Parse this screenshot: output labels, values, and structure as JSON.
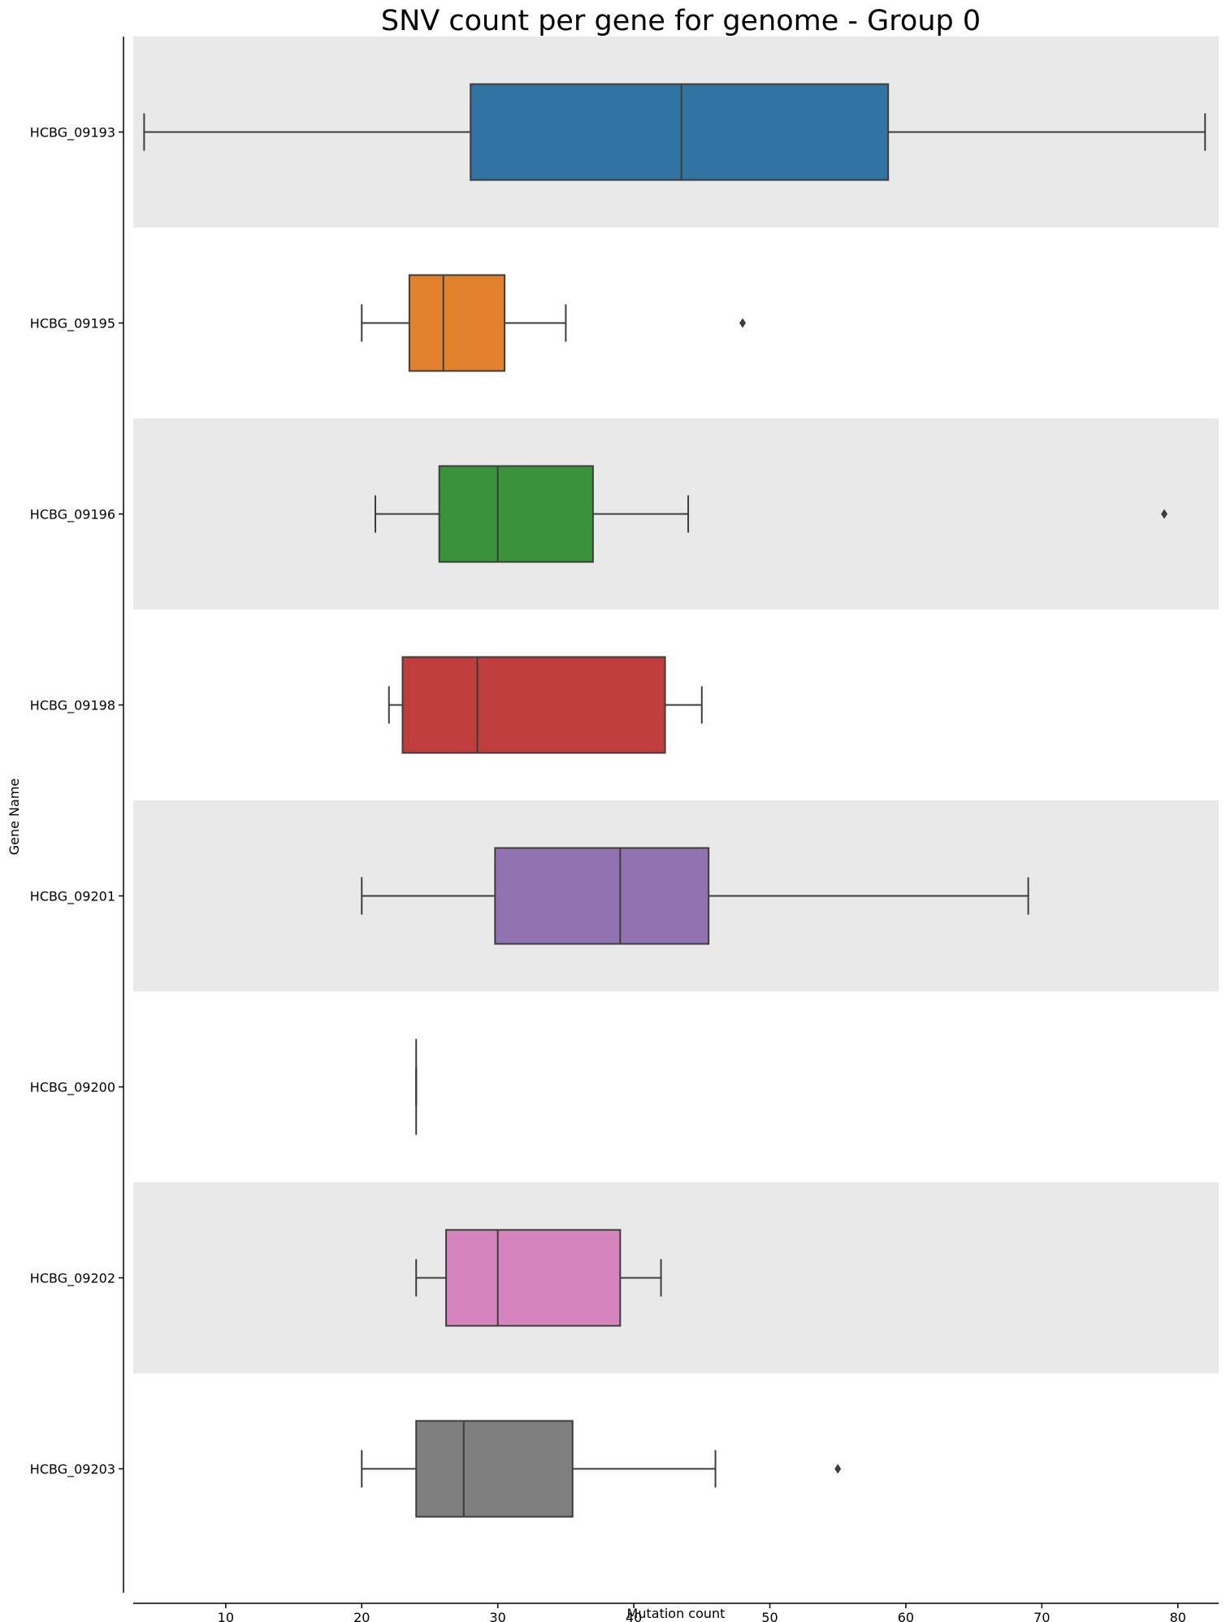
{
  "chart_data": {
    "type": "boxplot",
    "orientation": "horizontal",
    "title": "SNV count per gene for genome - Group 0",
    "xlabel": "Mutation count",
    "ylabel": "Gene Name",
    "xlim": [
      3.2,
      83.0
    ],
    "xticks": [
      10,
      20,
      30,
      40,
      50,
      60,
      70,
      80
    ],
    "band_shading": "alternating light gray rows",
    "categories": [
      "HCBG_09193",
      "HCBG_09195",
      "HCBG_09196",
      "HCBG_09198",
      "HCBG_09201",
      "HCBG_09200",
      "HCBG_09202",
      "HCBG_09203"
    ],
    "boxes": [
      {
        "label": "HCBG_09193",
        "whisker_low": 4,
        "q1": 28,
        "median": 43.5,
        "q3": 58.7,
        "whisker_high": 82,
        "outliers": [],
        "color": "#3274a1"
      },
      {
        "label": "HCBG_09195",
        "whisker_low": 20,
        "q1": 23.5,
        "median": 26,
        "q3": 30.5,
        "whisker_high": 35,
        "outliers": [
          48
        ],
        "color": "#e1812c"
      },
      {
        "label": "HCBG_09196",
        "whisker_low": 21,
        "q1": 25.7,
        "median": 30,
        "q3": 37,
        "whisker_high": 44,
        "outliers": [
          79
        ],
        "color": "#3a923a"
      },
      {
        "label": "HCBG_09198",
        "whisker_low": 22,
        "q1": 23,
        "median": 28.5,
        "q3": 42.3,
        "whisker_high": 45,
        "outliers": [],
        "color": "#c03d3e"
      },
      {
        "label": "HCBG_09201",
        "whisker_low": 20,
        "q1": 29.8,
        "median": 39,
        "q3": 45.5,
        "whisker_high": 69,
        "outliers": [],
        "color": "#9372b2"
      },
      {
        "label": "HCBG_09200",
        "whisker_low": 24,
        "q1": 24,
        "median": 24,
        "q3": 24,
        "whisker_high": 24,
        "outliers": [],
        "color": "#845b53"
      },
      {
        "label": "HCBG_09202",
        "whisker_low": 24,
        "q1": 26.2,
        "median": 30,
        "q3": 39,
        "whisker_high": 42,
        "outliers": [],
        "color": "#d684bd"
      },
      {
        "label": "HCBG_09203",
        "whisker_low": 20,
        "q1": 24,
        "median": 27.5,
        "q3": 35.5,
        "whisker_high": 46,
        "outliers": [
          55
        ],
        "color": "#7f7f7f"
      }
    ]
  }
}
